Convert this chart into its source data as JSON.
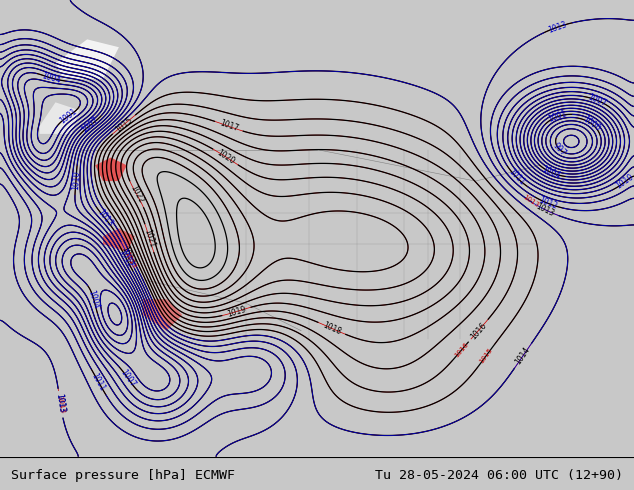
{
  "title_left": "Surface pressure [hPa] ECMWF",
  "title_right": "Tu 28-05-2024 06:00 UTC (12+90)",
  "title_fontsize": 9.5,
  "bg_color": "#c8c8c8",
  "land_color": "#b8d890",
  "ocean_color": "#c8c8c8",
  "bottom_bar_color": "#c8c8c8",
  "bottom_text_color": "#000000",
  "figsize": [
    6.34,
    4.9
  ],
  "dpi": 100
}
